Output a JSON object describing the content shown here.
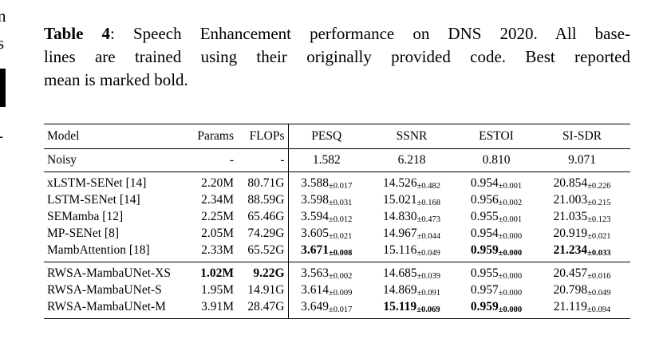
{
  "caption": {
    "label": "Table 4",
    "line1_rest": ": Speech Enhancement performance on DNS 2020. All base-",
    "line2": "lines are trained using their originally provided code. Best reported",
    "line3": "mean is marked bold."
  },
  "margin_fragments": {
    "f1": "n",
    "f2": "s",
    "f3": "-"
  },
  "table": {
    "headers": [
      "Model",
      "Params",
      "FLOPs",
      "PESQ",
      "SSNR",
      "ESTOI",
      "SI-SDR"
    ],
    "groups": [
      {
        "name": "noisy",
        "rows": [
          {
            "model": "Noisy",
            "params": "-",
            "flops": "-",
            "metrics": [
              {
                "v": "1.582",
                "s": ""
              },
              {
                "v": "6.218",
                "s": ""
              },
              {
                "v": "0.810",
                "s": ""
              },
              {
                "v": "9.071",
                "s": ""
              }
            ]
          }
        ]
      },
      {
        "name": "baselines",
        "rows": [
          {
            "model": "xLSTM-SENet [14]",
            "params": "2.20M",
            "flops": "80.71G",
            "metrics": [
              {
                "v": "3.588",
                "s": "±0.017"
              },
              {
                "v": "14.526",
                "s": "±0.482"
              },
              {
                "v": "0.954",
                "s": "±0.001"
              },
              {
                "v": "20.854",
                "s": "±0.226"
              }
            ]
          },
          {
            "model": "LSTM-SENet [14]",
            "params": "2.34M",
            "flops": "88.59G",
            "metrics": [
              {
                "v": "3.598",
                "s": "±0.031"
              },
              {
                "v": "15.021",
                "s": "±0.168"
              },
              {
                "v": "0.956",
                "s": "±0.002"
              },
              {
                "v": "21.003",
                "s": "±0.215"
              }
            ]
          },
          {
            "model": "SEMamba [12]",
            "params": "2.25M",
            "flops": "65.46G",
            "metrics": [
              {
                "v": "3.594",
                "s": "±0.012"
              },
              {
                "v": "14.830",
                "s": "±0.473"
              },
              {
                "v": "0.955",
                "s": "±0.001"
              },
              {
                "v": "21.035",
                "s": "±0.123"
              }
            ]
          },
          {
            "model": "MP-SENet [8]",
            "params": "2.05M",
            "flops": "74.29G",
            "metrics": [
              {
                "v": "3.605",
                "s": "±0.021"
              },
              {
                "v": "14.967",
                "s": "±0.044"
              },
              {
                "v": "0.954",
                "s": "±0.000"
              },
              {
                "v": "20.919",
                "s": "±0.021"
              }
            ]
          },
          {
            "model": "MambAttention [18]",
            "params": "2.33M",
            "flops": "65.52G",
            "metrics": [
              {
                "v": "3.671",
                "s": "±0.008",
                "bold": true
              },
              {
                "v": "15.116",
                "s": "±0.049"
              },
              {
                "v": "0.959",
                "s": "±0.000",
                "bold": true
              },
              {
                "v": "21.234",
                "s": "±0.033",
                "bold": true
              }
            ]
          }
        ]
      },
      {
        "name": "proposed",
        "rows": [
          {
            "model": "RWSA-MambaUNet-XS",
            "params": "1.02M",
            "params_bold": true,
            "flops": "9.22G",
            "flops_bold": true,
            "metrics": [
              {
                "v": "3.563",
                "s": "±0.002"
              },
              {
                "v": "14.685",
                "s": "±0.039"
              },
              {
                "v": "0.955",
                "s": "±0.000"
              },
              {
                "v": "20.457",
                "s": "±0.016"
              }
            ]
          },
          {
            "model": "RWSA-MambaUNet-S",
            "params": "1.95M",
            "flops": "14.91G",
            "metrics": [
              {
                "v": "3.614",
                "s": "±0.009"
              },
              {
                "v": "14.869",
                "s": "±0.091"
              },
              {
                "v": "0.957",
                "s": "±0.000"
              },
              {
                "v": "20.798",
                "s": "±0.049"
              }
            ]
          },
          {
            "model": "RWSA-MambaUNet-M",
            "params": "3.91M",
            "flops": "28.47G",
            "metrics": [
              {
                "v": "3.649",
                "s": "±0.017"
              },
              {
                "v": "15.119",
                "s": "±0.069",
                "bold": true
              },
              {
                "v": "0.959",
                "s": "±0.000",
                "bold": true
              },
              {
                "v": "21.119",
                "s": "±0.094"
              }
            ]
          }
        ]
      }
    ]
  }
}
